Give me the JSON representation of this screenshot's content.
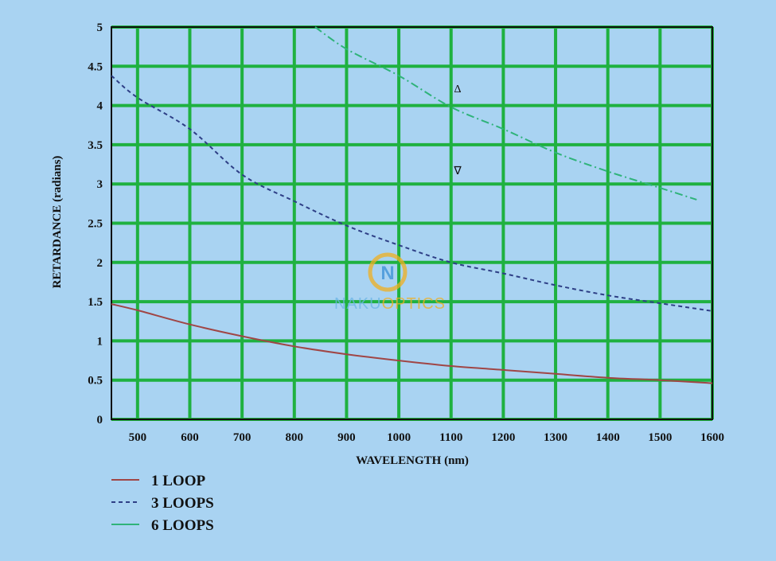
{
  "chart_data": {
    "type": "line",
    "xlabel": "WAVELENGTH (nm)",
    "ylabel": "RETARDANCE (radians)",
    "xlim": [
      450,
      1600
    ],
    "ylim": [
      0,
      5
    ],
    "x_ticks": [
      500,
      600,
      700,
      800,
      900,
      1000,
      1100,
      1200,
      1300,
      1400,
      1500,
      1600
    ],
    "y_ticks": [
      0,
      0.5,
      1,
      1.5,
      2,
      2.5,
      3,
      3.5,
      4,
      4.5,
      5
    ],
    "grid": true,
    "legend_position": "bottom-left",
    "series": [
      {
        "name": "1 LOOP",
        "color": "#a04646",
        "style": "solid",
        "x": [
          450,
          500,
          600,
          700,
          800,
          900,
          1000,
          1100,
          1200,
          1300,
          1400,
          1500,
          1600
        ],
        "y": [
          1.47,
          1.39,
          1.21,
          1.06,
          0.93,
          0.83,
          0.75,
          0.68,
          0.63,
          0.58,
          0.53,
          0.5,
          0.46
        ]
      },
      {
        "name": "3 LOOPS",
        "color": "#2e3f86",
        "style": "dashed",
        "x": [
          450,
          500,
          600,
          700,
          800,
          900,
          1000,
          1100,
          1200,
          1300,
          1400,
          1500,
          1600
        ],
        "y": [
          4.38,
          4.1,
          3.7,
          3.12,
          2.78,
          2.47,
          2.22,
          2.0,
          1.86,
          1.71,
          1.58,
          1.48,
          1.38
        ]
      },
      {
        "name": "6 LOOPS",
        "color": "#2fb37a",
        "style": "dash-dot",
        "x": [
          840,
          900,
          1000,
          1100,
          1200,
          1300,
          1400,
          1500,
          1570
        ],
        "y": [
          5.0,
          4.72,
          4.38,
          3.98,
          3.7,
          3.4,
          3.16,
          2.95,
          2.8
        ]
      }
    ],
    "annotations": [
      "Δ",
      "∇"
    ]
  },
  "watermark": {
    "prefix": "NAKU",
    "suffix": "OPTICS",
    "badge": "N"
  },
  "colors": {
    "background": "#a9d3f2",
    "grid": "#1fb140",
    "frame": "#111111"
  }
}
